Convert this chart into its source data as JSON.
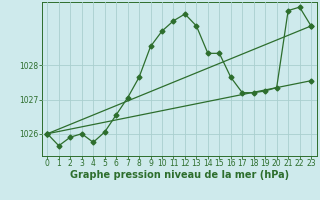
{
  "xlabel": "Graphe pression niveau de la mer (hPa)",
  "bg_color": "#ceeaec",
  "grid_color": "#aacfcf",
  "line_color": "#2d6e2d",
  "ylim": [
    1025.35,
    1029.85
  ],
  "xlim": [
    -0.5,
    23.5
  ],
  "yticks": [
    1026,
    1027,
    1028
  ],
  "xticks": [
    0,
    1,
    2,
    3,
    4,
    5,
    6,
    7,
    8,
    9,
    10,
    11,
    12,
    13,
    14,
    15,
    16,
    17,
    18,
    19,
    20,
    21,
    22,
    23
  ],
  "series1_x": [
    0,
    1,
    2,
    3,
    4,
    5,
    6,
    7,
    8,
    9,
    10,
    11,
    12,
    13,
    14,
    15,
    16,
    17,
    18,
    19,
    20,
    21,
    22,
    23
  ],
  "series1_y": [
    1026.0,
    1025.65,
    1025.9,
    1026.0,
    1025.75,
    1026.05,
    1026.55,
    1027.05,
    1027.65,
    1028.55,
    1029.0,
    1029.3,
    1029.5,
    1029.15,
    1028.35,
    1028.35,
    1027.65,
    1027.2,
    1027.2,
    1027.25,
    1027.35,
    1029.6,
    1029.7,
    1029.15
  ],
  "series2_x": [
    0,
    23
  ],
  "series2_y": [
    1026.0,
    1029.15
  ],
  "series3_x": [
    0,
    23
  ],
  "series3_y": [
    1026.0,
    1027.55
  ],
  "tick_fontsize": 5.5,
  "label_fontsize": 7.0
}
